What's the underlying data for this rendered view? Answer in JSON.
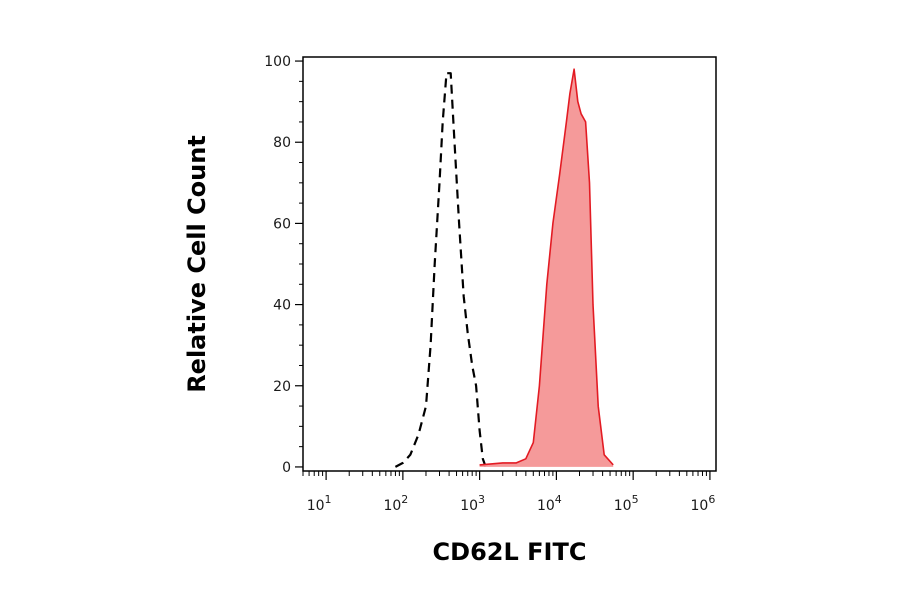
{
  "chart_data": {
    "type": "area",
    "xlabel": "CD62L FITC",
    "ylabel": "Relative Cell Count",
    "x_scale": "log",
    "xlim": [
      5,
      1200000
    ],
    "ylim": [
      -1,
      101
    ],
    "grid": false,
    "x_ticks": [
      {
        "value": 10,
        "base": "10",
        "exp": "1"
      },
      {
        "value": 100,
        "base": "10",
        "exp": "2"
      },
      {
        "value": 1000,
        "base": "10",
        "exp": "3"
      },
      {
        "value": 10000,
        "base": "10",
        "exp": "4"
      },
      {
        "value": 100000,
        "base": "10",
        "exp": "5"
      },
      {
        "value": 1000000,
        "base": "10",
        "exp": "6"
      }
    ],
    "y_ticks": [
      0,
      20,
      40,
      60,
      80,
      100
    ],
    "y_tick_labels": [
      "0",
      "20",
      "40",
      "60",
      "80",
      "100"
    ],
    "series": [
      {
        "style": "dashed",
        "color": "#000000",
        "points": [
          [
            80,
            0
          ],
          [
            100,
            1
          ],
          [
            125,
            3
          ],
          [
            160,
            8
          ],
          [
            200,
            15
          ],
          [
            230,
            30
          ],
          [
            260,
            50
          ],
          [
            300,
            70
          ],
          [
            330,
            85
          ],
          [
            370,
            97
          ],
          [
            420,
            97
          ],
          [
            470,
            80
          ],
          [
            540,
            60
          ],
          [
            620,
            42
          ],
          [
            700,
            33
          ],
          [
            800,
            25
          ],
          [
            900,
            20
          ],
          [
            1000,
            9
          ],
          [
            1100,
            2
          ],
          [
            1200,
            0
          ]
        ]
      },
      {
        "style": "filled",
        "color": "#e31b23",
        "fill": "#f59a9a",
        "points": [
          [
            1000,
            0.5
          ],
          [
            2000,
            1
          ],
          [
            3000,
            1
          ],
          [
            4000,
            2
          ],
          [
            5000,
            6
          ],
          [
            6000,
            20
          ],
          [
            7500,
            45
          ],
          [
            9000,
            60
          ],
          [
            11000,
            72
          ],
          [
            13500,
            85
          ],
          [
            15000,
            92
          ],
          [
            17000,
            98
          ],
          [
            19000,
            90
          ],
          [
            21000,
            87
          ],
          [
            24000,
            85
          ],
          [
            27000,
            70
          ],
          [
            30000,
            40
          ],
          [
            35000,
            15
          ],
          [
            42000,
            3
          ],
          [
            55000,
            0.5
          ]
        ]
      }
    ]
  }
}
